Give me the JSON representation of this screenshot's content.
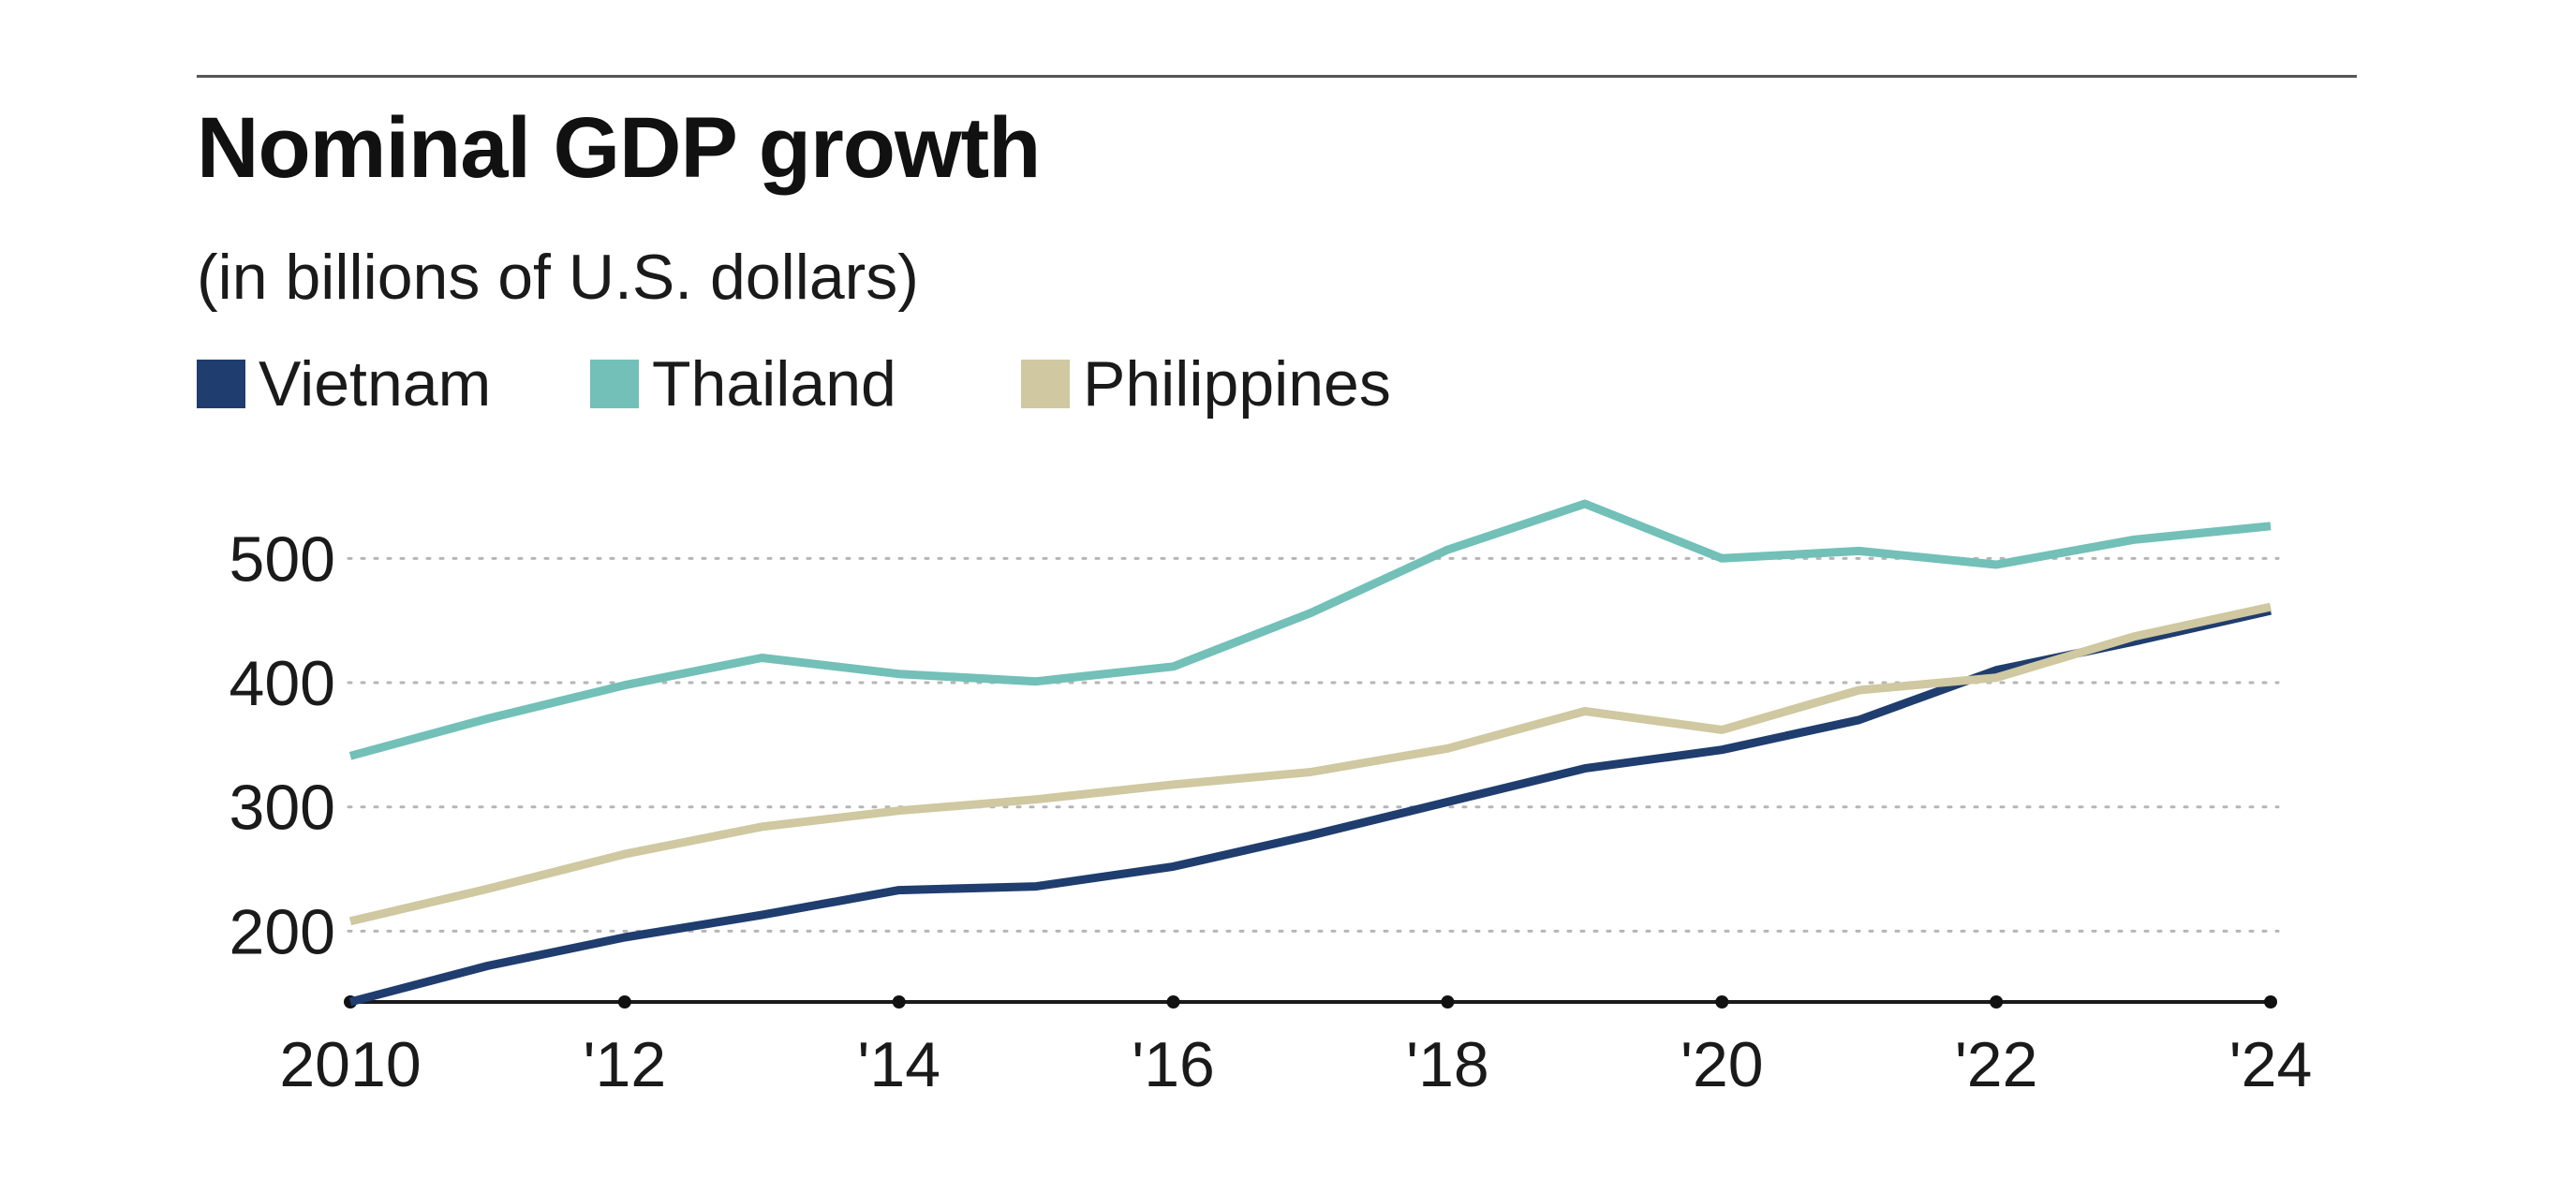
{
  "chart_data": {
    "type": "line",
    "title": "Nominal GDP growth",
    "subtitle": "(in billions of U.S. dollars)",
    "xlabel": "",
    "ylabel": "",
    "x": [
      2010,
      2011,
      2012,
      2013,
      2014,
      2015,
      2016,
      2017,
      2018,
      2019,
      2020,
      2021,
      2022,
      2023,
      2024
    ],
    "x_ticks": [
      2010,
      2012,
      2014,
      2016,
      2018,
      2020,
      2022,
      2024
    ],
    "x_tick_labels": [
      "2010",
      "'12",
      "'14",
      "'16",
      "'18",
      "'20",
      "'22",
      "'24"
    ],
    "y_ticks": [
      200,
      300,
      400,
      500
    ],
    "y_tick_labels": [
      "200",
      "300",
      "400",
      "500"
    ],
    "ylim": [
      143,
      550
    ],
    "grid": "horizontal dotted",
    "legend_position": "top-left",
    "series": [
      {
        "name": "Vietnam",
        "color": "#1f3d6e",
        "values": [
          143,
          172,
          195,
          213,
          233,
          236,
          252,
          277,
          304,
          331,
          346,
          370,
          410,
          433,
          458
        ]
      },
      {
        "name": "Thailand",
        "color": "#72c0b8",
        "values": [
          341,
          371,
          398,
          420,
          407,
          401,
          413,
          456,
          507,
          544,
          500,
          506,
          495,
          515,
          526
        ]
      },
      {
        "name": "Philippines",
        "color": "#cfc8a0",
        "values": [
          208,
          234,
          262,
          284,
          297,
          306,
          318,
          328,
          347,
          377,
          362,
          394,
          404,
          437,
          461
        ]
      }
    ]
  }
}
